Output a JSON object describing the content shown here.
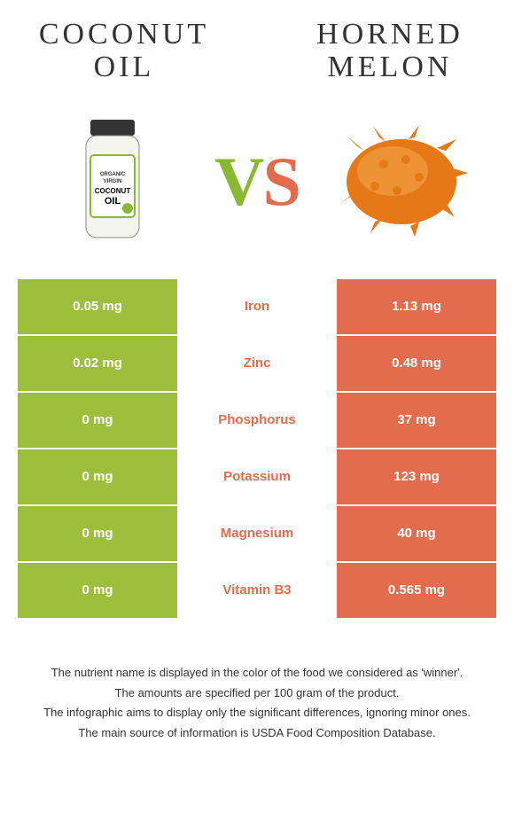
{
  "header": {
    "left_title_line1": "Coconut",
    "left_title_line2": "oil",
    "right_title_line1": "Horned",
    "right_title_line2": "melon"
  },
  "vs": {
    "v": "V",
    "s": "S"
  },
  "colors": {
    "left_bg": "#9bbf3b",
    "right_bg": "#e36c4e",
    "mid_text": "#e36c4e",
    "vs_v": "#8ab833",
    "vs_s": "#e36c4e"
  },
  "rows": [
    {
      "left": "0.05 mg",
      "label": "Iron",
      "right": "1.13 mg"
    },
    {
      "left": "0.02 mg",
      "label": "Zinc",
      "right": "0.48 mg"
    },
    {
      "left": "0 mg",
      "label": "Phosphorus",
      "right": "37 mg"
    },
    {
      "left": "0 mg",
      "label": "Potassium",
      "right": "123 mg"
    },
    {
      "left": "0 mg",
      "label": "Magnesium",
      "right": "40 mg"
    },
    {
      "left": "0 mg",
      "label": "Vitamin B3",
      "right": "0.565 mg"
    }
  ],
  "footer": {
    "line1": "The nutrient name is displayed in the color of the food we considered as 'winner'.",
    "line2": "The amounts are specified per 100 gram of the product.",
    "line3": "The infographic aims to display only the significant differences, ignoring minor ones.",
    "line4": "The main source of information is USDA Food Composition Database."
  },
  "jar_label_text": "COCONUT OIL"
}
